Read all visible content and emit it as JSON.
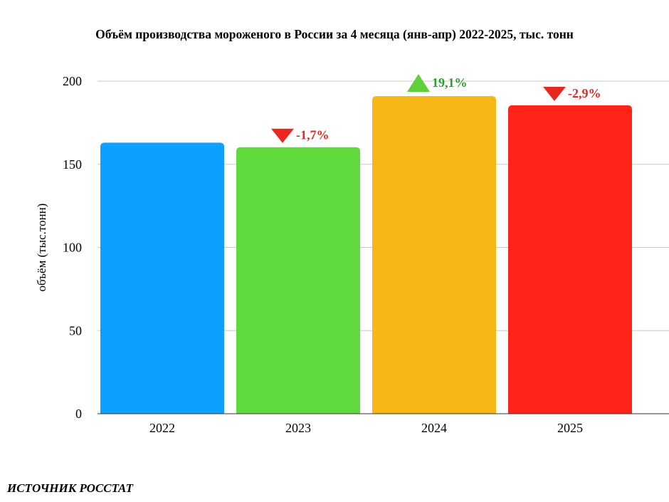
{
  "chart_data": {
    "type": "bar",
    "title": "Объём производства мороженого в России за 4 месяца (янв-апр) 2022-2025, тыс. тонн",
    "xlabel": "",
    "ylabel": "объём (тыс.тонн)",
    "ylim": [
      0,
      200
    ],
    "yticks": [
      "0",
      "50",
      "100",
      "150",
      "200"
    ],
    "grid": true,
    "categories": [
      "2022",
      "2023",
      "2024",
      "2025"
    ],
    "values": [
      163,
      160.3,
      191,
      185.5
    ],
    "bar_colors": [
      "#0ea0ff",
      "#5fd93b",
      "#f7b817",
      "#ff2417"
    ],
    "annotations": [
      null,
      {
        "text": "-1,7%",
        "direction": "down",
        "color": "#e8281e"
      },
      {
        "text": "19,1%",
        "direction": "up",
        "color": "#2ca02c"
      },
      {
        "text": "-2,9%",
        "direction": "down",
        "color": "#e8281e"
      }
    ],
    "arrow_colors": {
      "up": "#5fcf3a",
      "down": "#e8281e"
    }
  },
  "footer": {
    "source": "ИСТОЧНИК РОССТАТ"
  }
}
